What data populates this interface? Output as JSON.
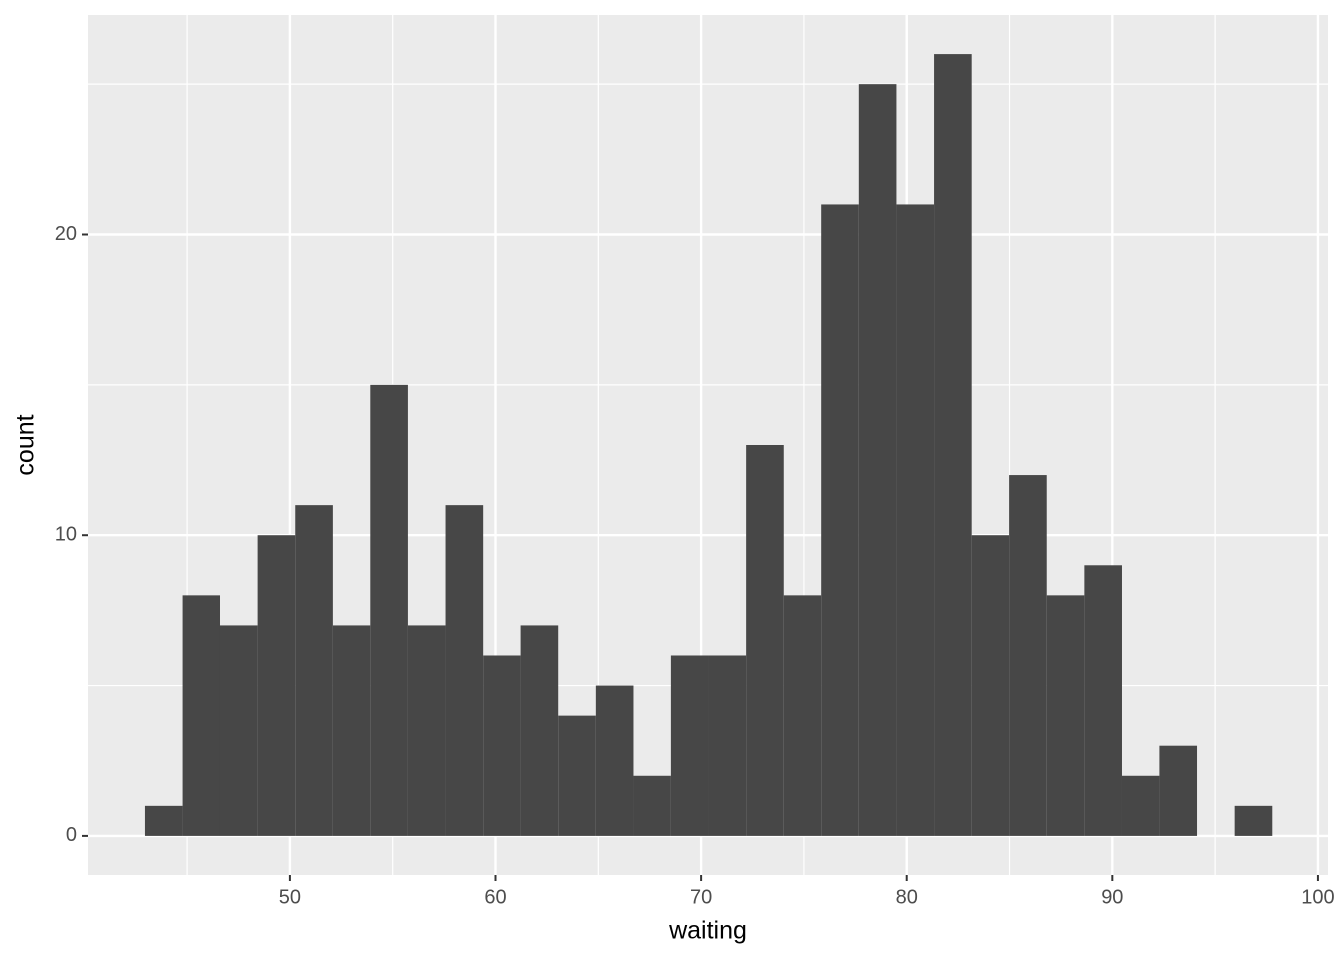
{
  "chart_data": {
    "type": "histogram",
    "x_label": "waiting",
    "y_label": "count",
    "bins": [
      42.95,
      44.78,
      46.6,
      48.43,
      50.26,
      52.09,
      53.91,
      55.74,
      57.57,
      59.4,
      61.22,
      63.05,
      64.88,
      66.71,
      68.53,
      70.36,
      72.19,
      74.02,
      75.84,
      77.67,
      79.5,
      81.33,
      83.16,
      84.98,
      86.81,
      88.64,
      90.47,
      92.29,
      94.12,
      95.95,
      97.78
    ],
    "values": [
      1,
      8,
      7,
      10,
      11,
      7,
      15,
      7,
      11,
      6,
      7,
      4,
      5,
      2,
      6,
      6,
      13,
      8,
      21,
      25,
      21,
      26,
      10,
      12,
      8,
      9,
      2,
      3,
      0,
      1
    ],
    "color": "#474747",
    "xlim": [
      40.18,
      100.49
    ],
    "xticks": [
      50,
      60,
      70,
      80,
      90,
      100
    ],
    "minor_xticks": [
      45,
      55,
      65,
      75,
      85,
      95
    ],
    "ylim": [
      -1.3,
      27.3
    ],
    "yticks": [
      0,
      10,
      20
    ],
    "minor_yticks": [
      5,
      15,
      25
    ],
    "grid": true
  }
}
